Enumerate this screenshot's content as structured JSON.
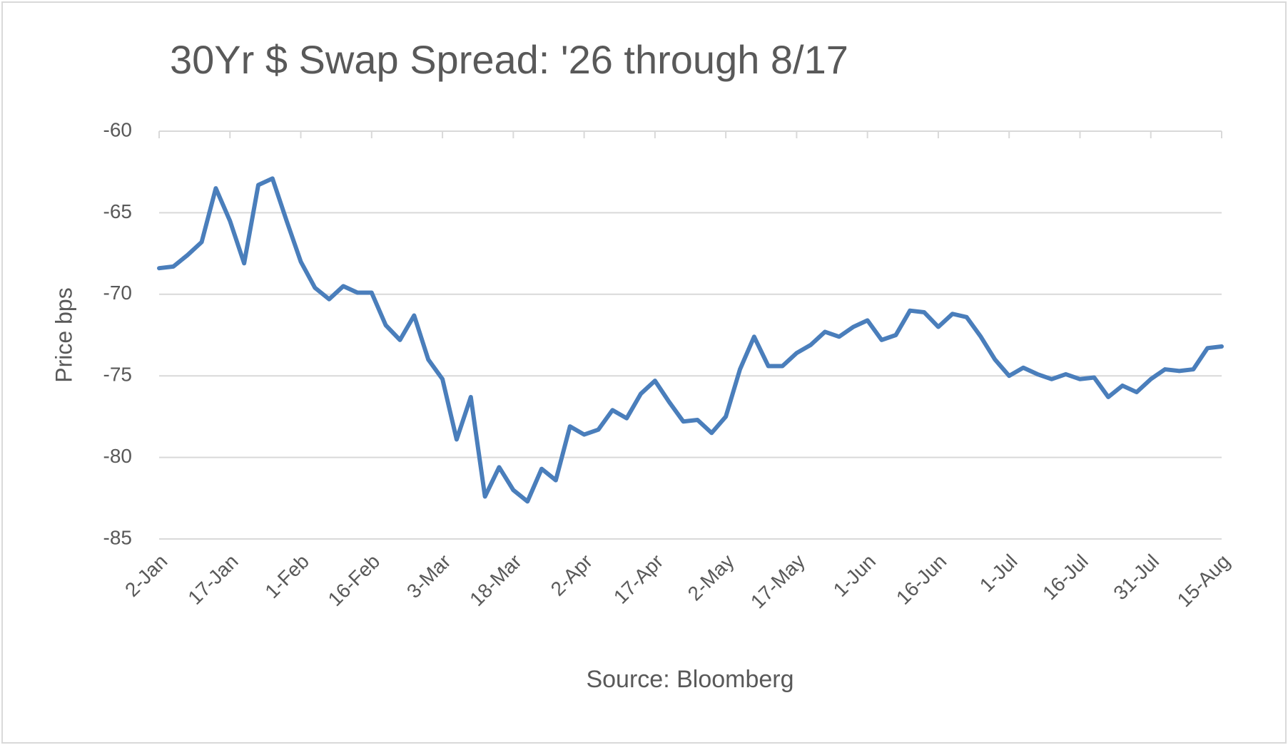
{
  "chart_data": {
    "type": "line",
    "title": "30Yr $ Swap Spread: '26 through 8/17",
    "y_label": "Price bps",
    "note": "Source: Bloomberg",
    "color": "#4a7ebb",
    "grid": true,
    "ylim": [
      -85,
      -60
    ],
    "yticks": [
      -85,
      -80,
      -75,
      -70,
      -65,
      -60
    ],
    "categories": [
      "2-Jan",
      null,
      null,
      null,
      null,
      "17-Jan",
      null,
      null,
      null,
      null,
      "1-Feb",
      null,
      null,
      null,
      null,
      "16-Feb",
      null,
      null,
      null,
      null,
      "3-Mar",
      null,
      null,
      null,
      null,
      "18-Mar",
      null,
      null,
      null,
      null,
      "2-Apr",
      null,
      null,
      null,
      null,
      "17-Apr",
      null,
      null,
      null,
      null,
      "2-May",
      null,
      null,
      null,
      null,
      "17-May",
      null,
      null,
      null,
      null,
      "1-Jun",
      null,
      null,
      null,
      null,
      "16-Jun",
      null,
      null,
      null,
      null,
      "1-Jul",
      null,
      null,
      null,
      null,
      "16-Jul",
      null,
      null,
      null,
      null,
      "31-Jul",
      null,
      null,
      null,
      null,
      "15-Aug"
    ],
    "values": [
      -68.4,
      -68.3,
      -67.6,
      -66.8,
      -63.5,
      -65.5,
      -68.1,
      -63.3,
      -62.9,
      -65.5,
      -68.0,
      -69.6,
      -70.3,
      -69.5,
      -69.9,
      -69.9,
      -71.9,
      -72.8,
      -71.3,
      -74.0,
      -75.2,
      -78.9,
      -76.3,
      -82.4,
      -80.6,
      -82.0,
      -82.7,
      -80.7,
      -81.4,
      -78.1,
      -78.6,
      -78.3,
      -77.1,
      -77.6,
      -76.1,
      -75.3,
      -76.6,
      -77.8,
      -77.7,
      -78.5,
      -77.5,
      -74.6,
      -72.6,
      -74.4,
      -74.4,
      -73.6,
      -73.1,
      -72.3,
      -72.6,
      -72.0,
      -71.6,
      -72.8,
      -72.5,
      -71.0,
      -71.1,
      -72.0,
      -71.2,
      -71.4,
      -72.6,
      -74.0,
      -75.0,
      -74.5,
      -74.9,
      -75.2,
      -74.9,
      -75.2,
      -75.1,
      -76.3,
      -75.6,
      -76.0,
      -75.2,
      -74.6,
      -74.7,
      -74.6,
      -73.3,
      -73.2
    ]
  }
}
